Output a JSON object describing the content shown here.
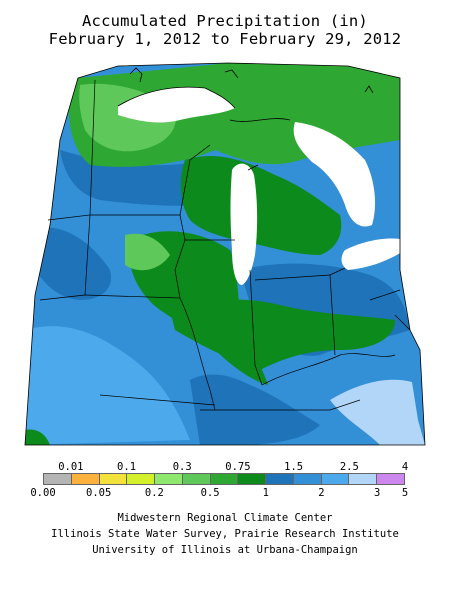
{
  "title": {
    "line1": "Accumulated Precipitation (in)",
    "line2": "February 1, 2012 to February 29, 2012"
  },
  "legend": {
    "colors": [
      "#b4b4b4",
      "#fbb13c",
      "#f2e23a",
      "#d4f02a",
      "#8ee86e",
      "#5ec85a",
      "#2ea832",
      "#0d8a1c",
      "#1f73b8",
      "#338fd6",
      "#4ba9ec",
      "#b2d6f8",
      "#cc88ee"
    ],
    "top_labels": [
      "0.01",
      "0.1",
      "0.3",
      "0.75",
      "1.5",
      "2.5",
      "4"
    ],
    "bottom_labels": [
      "0.00",
      "0.05",
      "0.2",
      "0.5",
      "1",
      "2",
      "3",
      "5"
    ]
  },
  "map": {
    "colors": {
      "dark_green": "#0d8a1c",
      "mid_green": "#2ea832",
      "light_green": "#5ec85a",
      "dark_blue": "#1f73b8",
      "mid_blue": "#338fd6",
      "light_blue": "#4ba9ec",
      "pale_blue": "#b2d6f8",
      "water": "#ffffff",
      "border": "#000000"
    }
  },
  "credits": {
    "line1": "Midwestern Regional Climate Center",
    "line2": "Illinois State Water Survey, Prairie Research Institute",
    "line3": "University of Illinois at Urbana-Champaign"
  }
}
